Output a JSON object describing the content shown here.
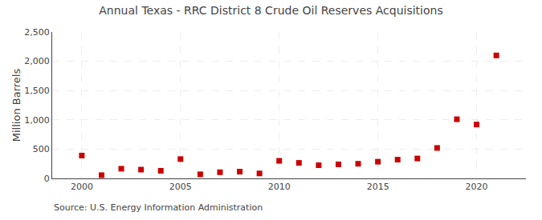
{
  "chart_data": {
    "type": "scatter",
    "title": "Annual Texas - RRC District 8 Crude Oil Reserves Acquisitions",
    "ylabel": "Million Barrels",
    "annotations": [
      "Source: U.S. Energy Information Administration"
    ],
    "x": [
      2000,
      2001,
      2002,
      2003,
      2004,
      2005,
      2006,
      2007,
      2008,
      2009,
      2010,
      2011,
      2012,
      2013,
      2014,
      2015,
      2016,
      2017,
      2018,
      2019,
      2020,
      2021
    ],
    "values": [
      390,
      55,
      165,
      150,
      130,
      330,
      70,
      105,
      115,
      85,
      300,
      265,
      225,
      240,
      250,
      285,
      320,
      340,
      520,
      1010,
      920,
      2100
    ],
    "color": "#cc0000",
    "marker": "square",
    "xlim": [
      1998.5,
      2022.5
    ],
    "xticks": [
      2000,
      2005,
      2010,
      2015,
      2020
    ],
    "ylim": [
      0,
      2500
    ],
    "yticks": [
      0,
      500,
      {
        "value": 1000,
        "label": "1,000"
      },
      {
        "value": 1500,
        "label": "1,500"
      },
      {
        "value": 2000,
        "label": "2,000"
      },
      {
        "value": 2500,
        "label": "2,500"
      }
    ],
    "grid": true
  }
}
